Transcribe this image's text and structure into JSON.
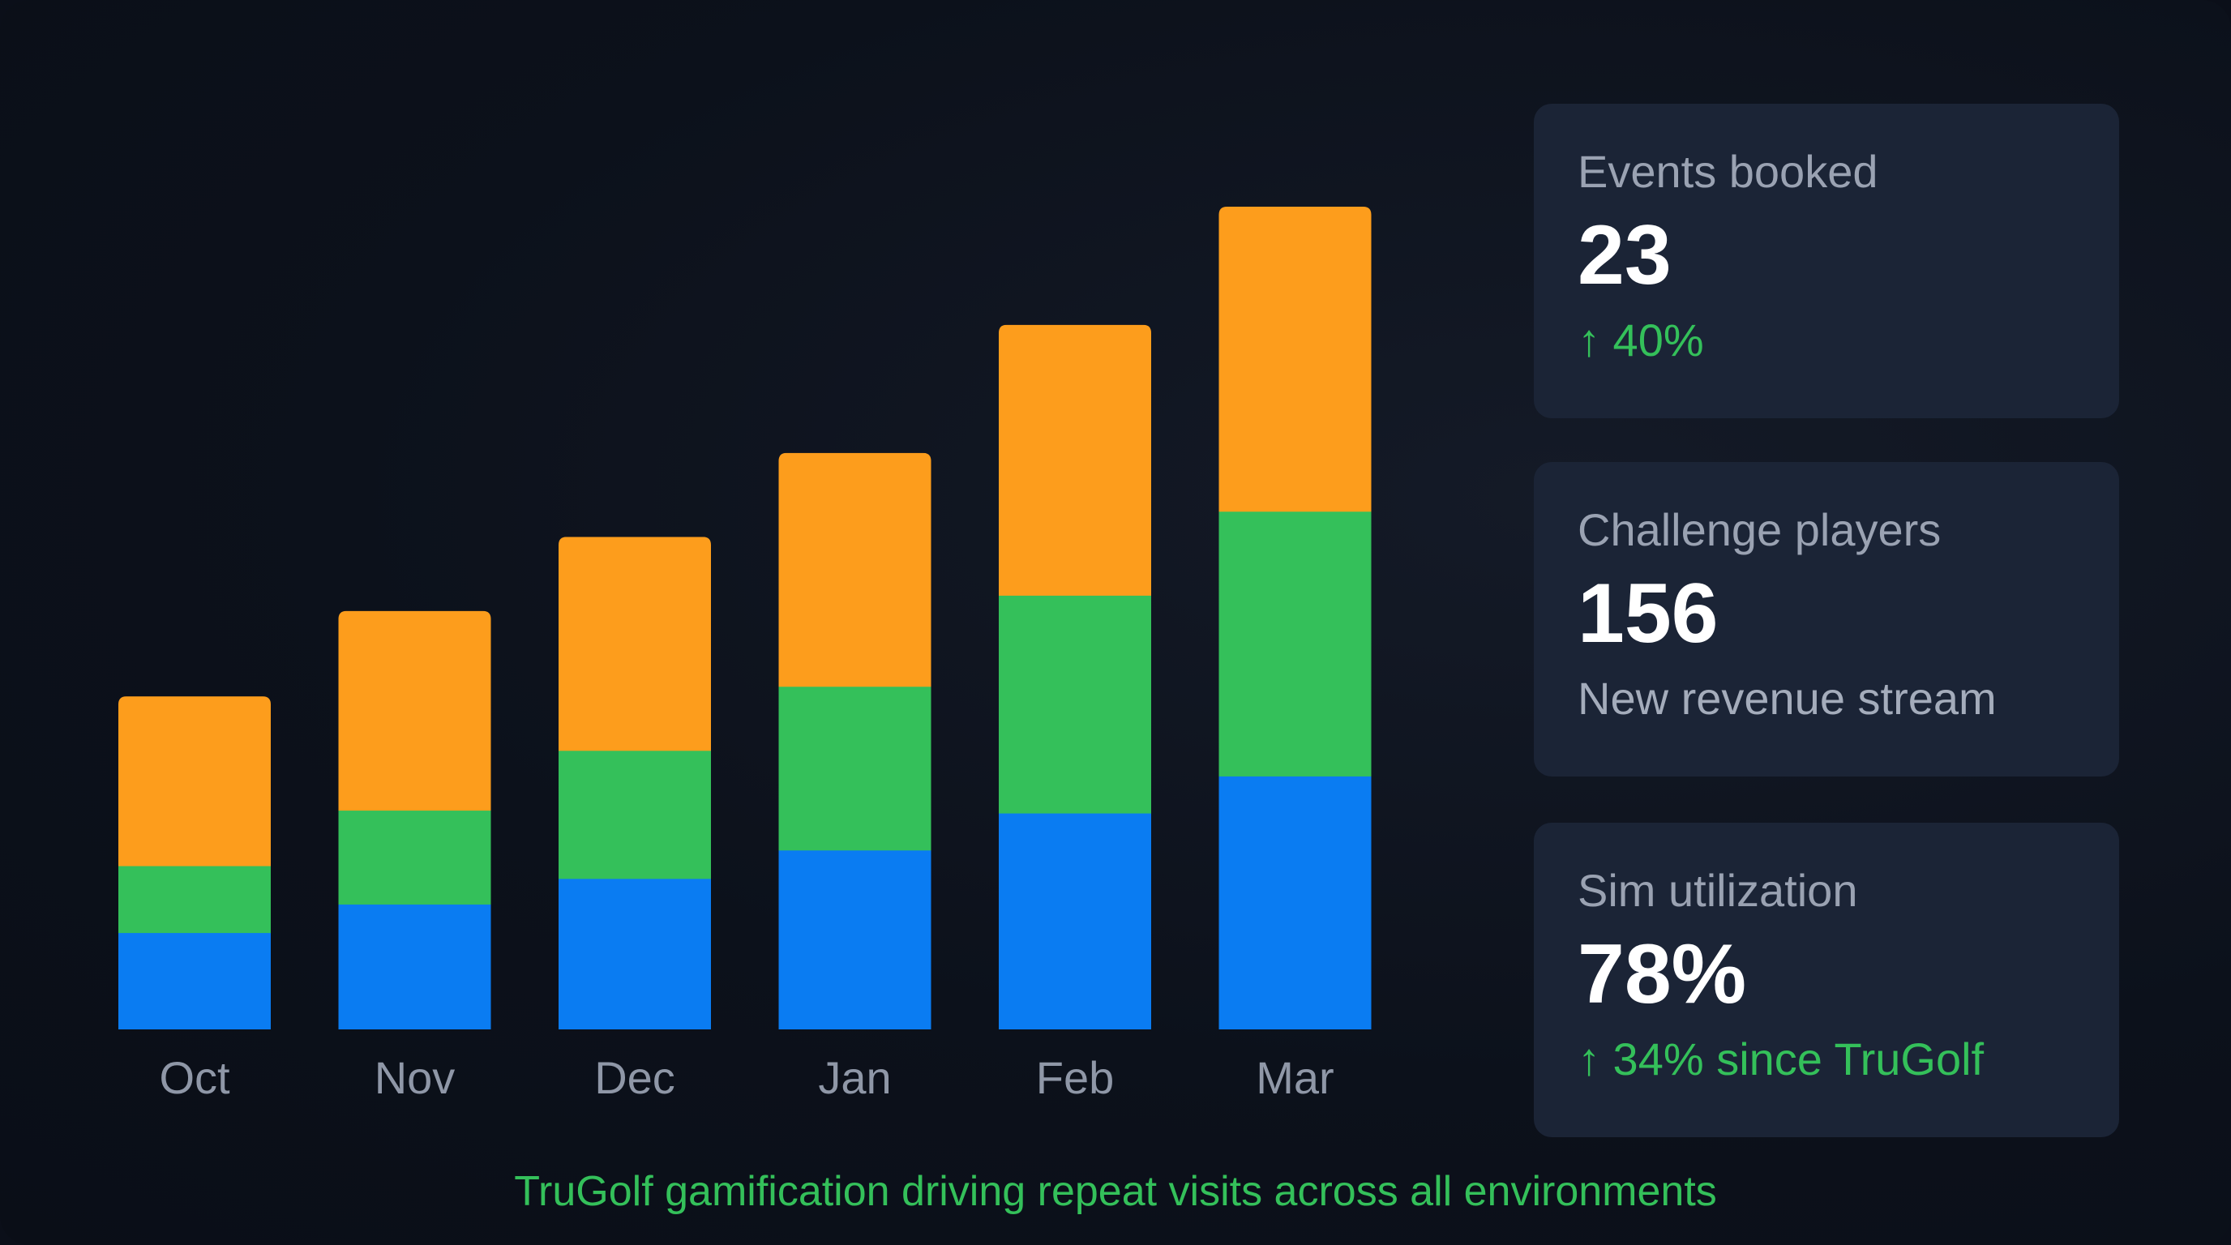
{
  "chart_data": {
    "type": "bar",
    "stacked": true,
    "categories": [
      "Oct",
      "Nov",
      "Dec",
      "Jan",
      "Feb",
      "Mar"
    ],
    "series": [
      {
        "name": "blue",
        "color": "#0a7cf2",
        "values": [
          68,
          88,
          106,
          126,
          152,
          178
        ]
      },
      {
        "name": "green",
        "color": "#34c05a",
        "values": [
          47,
          66,
          90,
          115,
          153,
          186
        ]
      },
      {
        "name": "orange",
        "color": "#fd9d1c",
        "values": [
          119,
          140,
          150,
          164,
          190,
          214
        ]
      }
    ],
    "ylim": [
      0,
      578
    ],
    "title": "",
    "xlabel": "",
    "ylabel": "",
    "grid": false,
    "legend": "none"
  },
  "cards": [
    {
      "label": "Events booked",
      "value": "23",
      "sub": "↑ 40%",
      "sub_style": "positive"
    },
    {
      "label": "Challenge players",
      "value": "156",
      "sub": "New revenue stream",
      "sub_style": "neutral"
    },
    {
      "label": "Sim utilization",
      "value": "78%",
      "sub": "↑ 34% since TruGolf",
      "sub_style": "positive"
    }
  ],
  "footer": "TruGolf gamification driving repeat visits across all environments"
}
